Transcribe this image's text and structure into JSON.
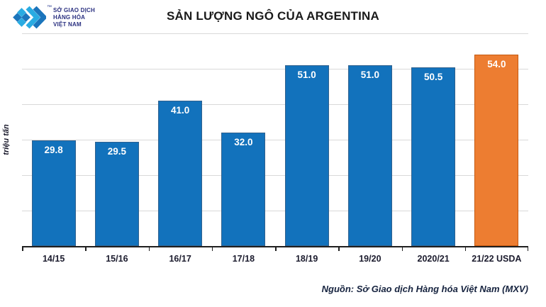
{
  "header": {
    "logo": {
      "tm": "™",
      "lines": [
        "SỞ GIAO DỊCH",
        "HÀNG HÓA",
        "VIỆT NAM"
      ]
    },
    "title": "SẢN LƯỢNG NGÔ CỦA ARGENTINA"
  },
  "chart_data": {
    "type": "bar",
    "title": "SẢN LƯỢNG NGÔ CỦA ARGENTINA",
    "xlabel": "",
    "ylabel": "triệu tấn",
    "categories": [
      "14/15",
      "15/16",
      "16/17",
      "17/18",
      "18/19",
      "19/20",
      "2020/21",
      "21/22 USDA"
    ],
    "values": [
      29.8,
      29.5,
      41.0,
      32.0,
      51.0,
      51.0,
      50.5,
      54.0
    ],
    "value_labels": [
      "29.8",
      "29.5",
      "41.0",
      "32.0",
      "51.0",
      "51.0",
      "50.5",
      "54.0"
    ],
    "ylim": [
      0,
      60
    ],
    "grid_step": 10,
    "grid": true,
    "legend_position": "none",
    "highlight_index": 7,
    "colors": {
      "bar_fill": "#1272BC",
      "bar_border": "#30618E",
      "highlight_fill": "#ED7D31",
      "highlight_border": "#C55A11",
      "gridline": "#D9D9D9",
      "axis": "#1F1F1F",
      "value_label": "#FFFFFF",
      "logo_light_blue": "#29ABE2",
      "logo_dark_blue": "#1B75BC",
      "logo_text": "#2A3080"
    }
  },
  "footer": {
    "source": "Nguồn: Sở Giao dịch Hàng hóa Việt Nam (MXV)"
  }
}
